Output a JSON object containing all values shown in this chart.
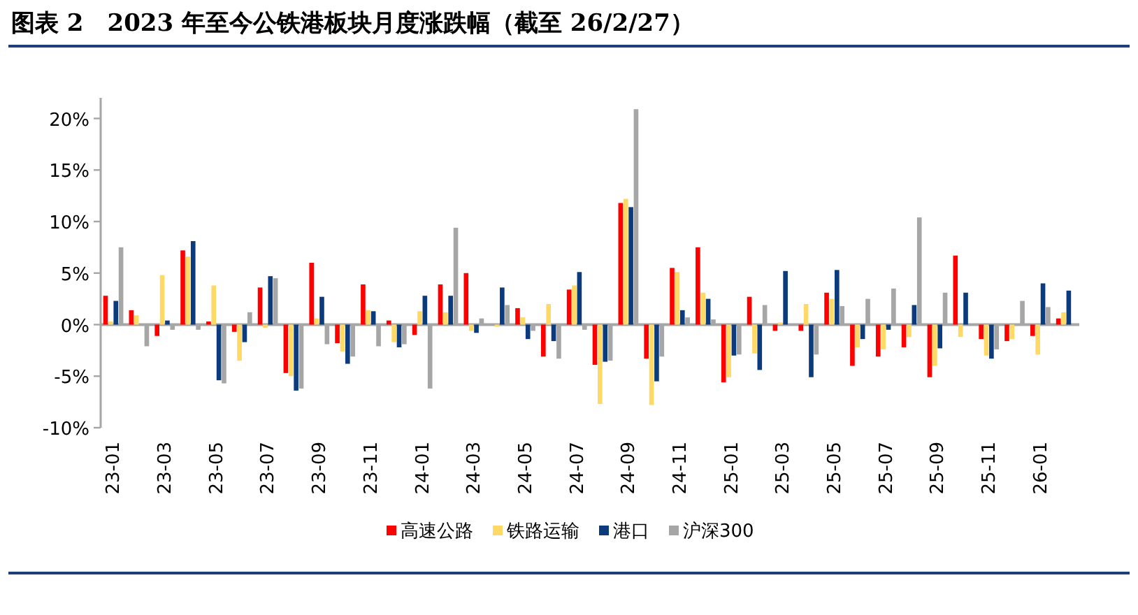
{
  "chart_data": {
    "type": "bar",
    "title": "图表 2　2023 年至今公铁港板块月度涨跌幅（截至 26/2/27）",
    "categories": [
      "23-01",
      null,
      "23-03",
      null,
      "23-05",
      null,
      "23-07",
      null,
      "23-09",
      null,
      "23-11",
      null,
      "24-01",
      null,
      "24-03",
      null,
      "24-05",
      null,
      "24-07",
      null,
      "24-09",
      null,
      "24-11",
      null,
      "25-01",
      null,
      "25-03",
      null,
      "25-05",
      null,
      "25-07",
      null,
      "25-09",
      null,
      "25-11",
      null,
      "26-01",
      null
    ],
    "series": [
      {
        "name": "高速公路",
        "color": "#ff0000",
        "values": [
          2.8,
          1.4,
          -1.1,
          7.2,
          0.3,
          -0.7,
          3.6,
          -4.7,
          6.0,
          -1.8,
          3.9,
          0.4,
          -1.0,
          3.9,
          5.0,
          0,
          1.6,
          -3.1,
          3.4,
          -3.9,
          11.8,
          -3.3,
          5.5,
          7.5,
          -5.6,
          2.7,
          -0.6,
          -0.6,
          3.1,
          -4.0,
          -3.1,
          -2.2,
          -5.1,
          6.7,
          -1.4,
          -1.6,
          -1.1,
          0.6
        ]
      },
      {
        "name": "铁路运输",
        "color": "#ffd966",
        "values": [
          0.3,
          0.9,
          4.8,
          6.6,
          3.8,
          -3.5,
          -0.3,
          -5.0,
          0.6,
          -2.6,
          1.4,
          -1.7,
          1.3,
          1.2,
          -0.6,
          -0.2,
          0.7,
          2.0,
          3.8,
          -7.7,
          12.2,
          -7.8,
          5.1,
          3.1,
          -5.1,
          -2.8,
          0.2,
          2.0,
          2.5,
          -2.2,
          -2.4,
          -1.2,
          -4.0,
          -1.2,
          -3.0,
          -1.4,
          -2.9,
          1.2
        ]
      },
      {
        "name": "港口",
        "color": "#0b3b7c",
        "values": [
          2.3,
          0,
          0.4,
          8.1,
          -5.4,
          -1.7,
          4.7,
          -6.4,
          2.7,
          -3.8,
          1.3,
          -2.2,
          2.8,
          2.8,
          -0.8,
          3.6,
          -1.4,
          -1.6,
          5.1,
          -3.6,
          11.4,
          -5.5,
          1.4,
          2.5,
          -3.0,
          -4.4,
          5.2,
          -5.1,
          5.3,
          -1.4,
          -0.5,
          1.9,
          -2.3,
          3.1,
          -3.3,
          0,
          4.0,
          3.3
        ]
      },
      {
        "name": "沪深300",
        "color": "#a6a6a6",
        "values": [
          7.5,
          -2.1,
          -0.5,
          -0.5,
          -5.7,
          1.2,
          4.5,
          -6.2,
          -1.9,
          -3.1,
          -2.1,
          -1.9,
          -6.2,
          9.4,
          0.6,
          1.9,
          -0.6,
          -3.3,
          -0.5,
          -3.5,
          20.9,
          -3.1,
          0.7,
          0.5,
          -2.9,
          1.9,
          0,
          -2.9,
          1.8,
          2.5,
          3.5,
          10.4,
          3.1,
          0,
          -2.4,
          2.3,
          1.7,
          0
        ]
      }
    ],
    "ylim": [
      -10,
      22
    ],
    "yticks": [
      {
        "value": -10,
        "label": "-10%"
      },
      {
        "value": -5,
        "label": "-5%"
      },
      {
        "value": 0,
        "label": "0%"
      },
      {
        "value": 5,
        "label": "5%"
      },
      {
        "value": 10,
        "label": "10%"
      },
      {
        "value": 15,
        "label": "15%"
      },
      {
        "value": 20,
        "label": "20%"
      }
    ],
    "legend": "bottom"
  }
}
